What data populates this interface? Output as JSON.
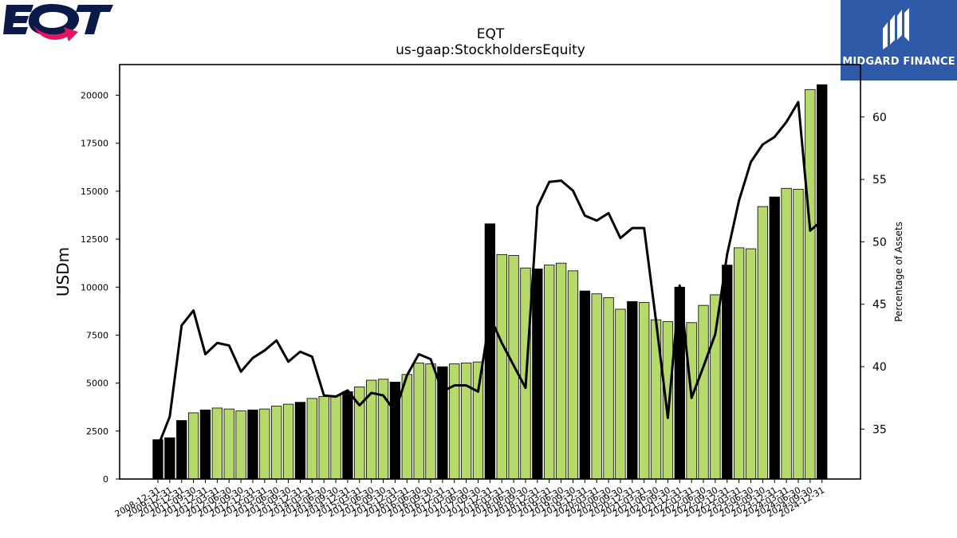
{
  "chart_data": {
    "type": "bar",
    "title": "EQT",
    "subtitle": "us-gaap:StockholdersEquity",
    "ylabel": "USDm",
    "ylabel_right": "Percentage of Assets",
    "ylim": [
      0,
      21600
    ],
    "ylim_right": [
      31.0,
      64.2
    ],
    "yticks": [
      0,
      2500,
      5000,
      7500,
      10000,
      12500,
      15000,
      17500,
      20000
    ],
    "yticks_right": [
      35,
      40,
      45,
      50,
      55,
      60
    ],
    "grid": false,
    "colors": {
      "annual_bar": "#000000",
      "quarter_bar": "#b5d96a",
      "bar_edge": "#000000",
      "line": "#000000"
    },
    "categories": [
      "2008-12-31",
      "2009-12-31",
      "2010-12-31",
      "2011-09-30",
      "2011-12-31",
      "2012-03-31",
      "2012-06-30",
      "2012-09-30",
      "2012-12-31",
      "2013-03-31",
      "2013-06-30",
      "2013-09-30",
      "2013-12-31",
      "2014-03-31",
      "2014-06-30",
      "2014-09-30",
      "2014-12-31",
      "2015-03-31",
      "2015-06-30",
      "2015-09-30",
      "2015-12-31",
      "2016-03-31",
      "2016-06-30",
      "2016-09-30",
      "2016-12-31",
      "2017-03-31",
      "2017-06-30",
      "2017-09-30",
      "2017-12-31",
      "2018-03-31",
      "2018-06-30",
      "2018-09-30",
      "2018-12-31",
      "2019-03-31",
      "2019-06-30",
      "2019-09-30",
      "2019-12-31",
      "2020-03-31",
      "2020-06-30",
      "2020-09-30",
      "2020-12-31",
      "2021-03-31",
      "2021-06-30",
      "2021-09-30",
      "2021-12-31",
      "2022-03-31",
      "2022-06-30",
      "2022-09-30",
      "2022-12-31",
      "2023-03-31",
      "2023-06-30",
      "2023-09-30",
      "2023-12-31",
      "2024-03-31",
      "2024-06-30",
      "2024-09-30",
      "2024-12-31"
    ],
    "series": [
      {
        "values": [
          2050,
          2150,
          3050,
          3450,
          3600,
          3700,
          3650,
          3550,
          3600,
          3650,
          3800,
          3900,
          4000,
          4200,
          4300,
          4350,
          4550,
          4800,
          5150,
          5200,
          5050,
          5450,
          6050,
          6000,
          5850,
          6000,
          6050,
          6100,
          13300,
          11700,
          11650,
          11000,
          10950,
          11150,
          11250,
          10850,
          9800,
          9650,
          9450,
          8850,
          9250,
          9200,
          8300,
          8200,
          10000,
          8150,
          9050,
          9600,
          11150,
          12050,
          12000,
          14200,
          14700,
          15150,
          15100,
          20300,
          20550
        ],
        "annual": [
          true,
          true,
          true,
          false,
          true,
          false,
          false,
          false,
          true,
          false,
          false,
          false,
          true,
          false,
          false,
          false,
          true,
          false,
          false,
          false,
          true,
          false,
          false,
          false,
          true,
          false,
          false,
          false,
          true,
          false,
          false,
          false,
          true,
          false,
          false,
          false,
          true,
          false,
          false,
          false,
          true,
          false,
          false,
          false,
          true,
          false,
          false,
          false,
          true,
          false,
          false,
          false,
          true,
          false,
          false,
          false,
          true
        ]
      },
      {
        "axis": "right",
        "values": [
          33.6,
          36.0,
          43.3,
          44.5,
          41.0,
          41.9,
          41.7,
          39.6,
          40.7,
          41.3,
          42.1,
          40.4,
          41.2,
          40.8,
          37.7,
          37.6,
          38.1,
          36.9,
          37.9,
          37.7,
          36.4,
          39.3,
          41.0,
          40.6,
          38.0,
          38.5,
          38.5,
          38.0,
          44.0,
          41.9,
          40.1,
          38.3,
          52.8,
          54.8,
          54.9,
          54.1,
          52.1,
          51.7,
          52.3,
          50.3,
          51.1,
          51.1,
          43.7,
          35.9,
          46.5,
          37.5,
          40.0,
          42.6,
          49.0,
          53.3,
          56.4,
          57.8,
          58.4,
          59.6,
          61.2,
          50.9,
          51.7
        ]
      }
    ]
  },
  "logo": {
    "text": "EQT",
    "primary_color": "#0c1a4a",
    "arrow_color": "#e6145f"
  },
  "brand": {
    "text": "MIDGARD FINANCE",
    "color": "#2f5aa8"
  }
}
